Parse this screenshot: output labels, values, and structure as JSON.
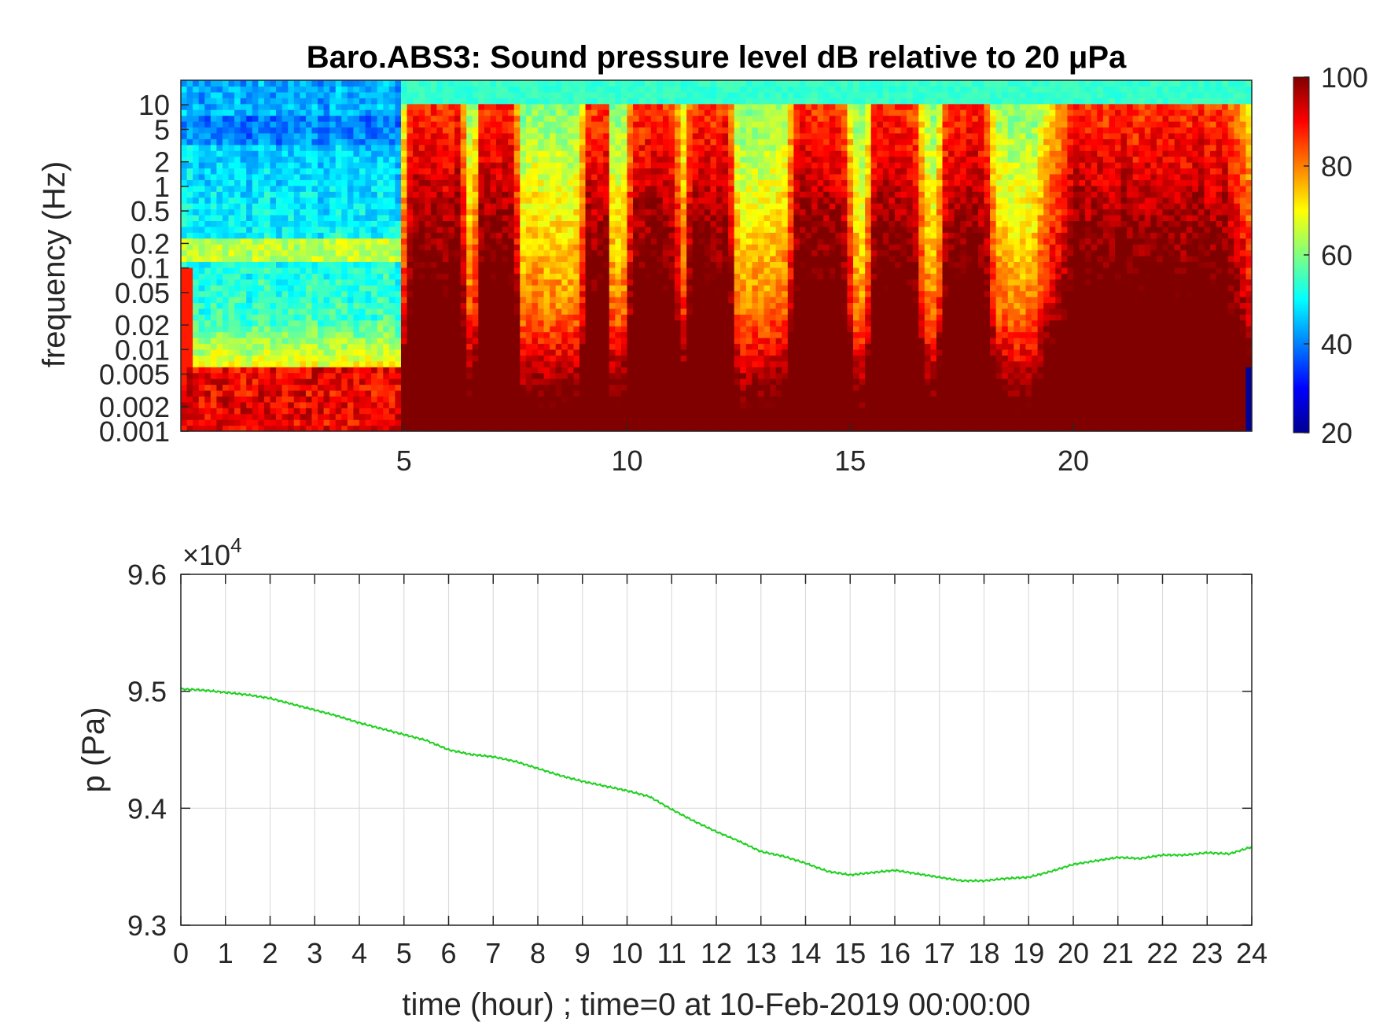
{
  "chart_data": [
    {
      "type": "heatmap",
      "title": "Baro.ABS3: Sound pressure level dB relative to 20 μPa",
      "ylabel": "frequency (Hz)",
      "xlabel": "",
      "x_unit_note": "time in hours",
      "xlim": [
        0,
        24
      ],
      "x_ticks": [
        "5",
        "10",
        "15",
        "20"
      ],
      "y_scale": "log",
      "ylim": [
        0.001,
        20
      ],
      "y_ticks": [
        "10",
        "5",
        "2",
        "1",
        "0.5",
        "0.2",
        "0.1",
        "0.05",
        "0.02",
        "0.01",
        "0.005",
        "0.002",
        "0.001"
      ],
      "colormap": "jet",
      "clim": [
        20,
        100
      ],
      "colorbar_ticks": [
        "100",
        "80",
        "60",
        "40",
        "20"
      ],
      "colorbar_placement": "right",
      "active_intervals_hours": [
        [
          5,
          6.4
        ],
        [
          6.6,
          7.6
        ],
        [
          9.0,
          9.6
        ],
        [
          10.0,
          11.2
        ],
        [
          11.3,
          12.4
        ],
        [
          13.6,
          15.0
        ],
        [
          15.4,
          16.6
        ],
        [
          17.0,
          18.2
        ],
        [
          19.4,
          24
        ]
      ],
      "quiet_period_hours": [
        0,
        5
      ]
    },
    {
      "type": "line",
      "title": "",
      "xlabel": "time (hour) ; time=0 at 10-Feb-2019 00:00:00",
      "ylabel": "p (Pa)",
      "y_exponent_label": "×10",
      "y_exponent_power": "4",
      "xlim": [
        0,
        24
      ],
      "ylim": [
        9.3,
        9.6
      ],
      "x_ticks": [
        "0",
        "1",
        "2",
        "3",
        "4",
        "5",
        "6",
        "7",
        "8",
        "9",
        "10",
        "11",
        "12",
        "13",
        "14",
        "15",
        "16",
        "17",
        "18",
        "19",
        "20",
        "21",
        "22",
        "23",
        "24"
      ],
      "y_ticks": [
        "9.3",
        "9.4",
        "9.5",
        "9.6"
      ],
      "grid": true,
      "series": [
        {
          "color": "#1fd11f",
          "x": [
            0,
            0.5,
            1,
            1.5,
            2,
            2.5,
            3,
            3.5,
            4,
            4.5,
            5,
            5.5,
            6,
            6.5,
            7,
            7.5,
            8,
            8.5,
            9,
            9.5,
            10,
            10.5,
            11,
            11.5,
            12,
            12.5,
            13,
            13.5,
            14,
            14.5,
            15,
            15.5,
            16,
            16.5,
            17,
            17.5,
            18,
            18.5,
            19,
            19.5,
            20,
            20.5,
            21,
            21.5,
            22,
            22.5,
            23,
            23.5,
            24
          ],
          "y": [
            9.502,
            9.501,
            9.499,
            9.497,
            9.494,
            9.489,
            9.484,
            9.479,
            9.473,
            9.468,
            9.463,
            9.458,
            9.45,
            9.446,
            9.444,
            9.44,
            9.434,
            9.428,
            9.423,
            9.419,
            9.415,
            9.41,
            9.399,
            9.389,
            9.38,
            9.372,
            9.363,
            9.359,
            9.353,
            9.346,
            9.343,
            9.345,
            9.347,
            9.344,
            9.341,
            9.338,
            9.338,
            9.34,
            9.341,
            9.346,
            9.352,
            9.355,
            9.358,
            9.357,
            9.36,
            9.36,
            9.362,
            9.361,
            9.367
          ]
        }
      ]
    }
  ]
}
